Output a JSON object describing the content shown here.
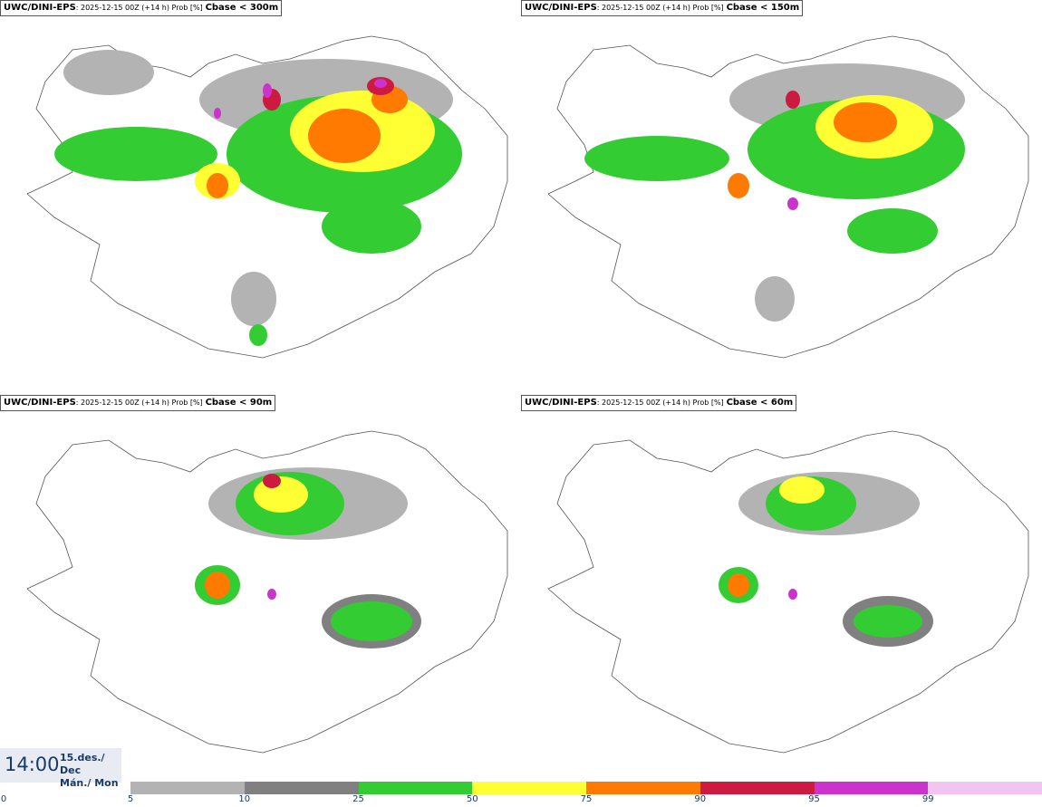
{
  "panels": [
    {
      "model": "UWC/DINI-EPS",
      "run": ": 2025-12-15 00Z (+14 h) Prob [%]",
      "variable": "Cbase < 300m"
    },
    {
      "model": "UWC/DINI-EPS",
      "run": ": 2025-12-15 00Z (+14 h) Prob [%]",
      "variable": "Cbase < 150m"
    },
    {
      "model": "UWC/DINI-EPS",
      "run": ": 2025-12-15 00Z (+14 h) Prob [%]",
      "variable": "Cbase < 90m"
    },
    {
      "model": "UWC/DINI-EPS",
      "run": ": 2025-12-15 00Z (+14 h) Prob [%]",
      "variable": "Cbase < 60m"
    }
  ],
  "valid_time": {
    "time": "14:00",
    "date_line1": "15.des./ Dec",
    "date_line2": "Mán./ Mon"
  },
  "legend": {
    "ticks": [
      "0",
      "5",
      "10",
      "25",
      "50",
      "75",
      "90",
      "95",
      "99"
    ],
    "colors": [
      "#b3b3b3",
      "#808080",
      "#33cc33",
      "#ffff33",
      "#ff7a00",
      "#cc1a40",
      "#cc33cc",
      "#f2c4f2"
    ]
  }
}
